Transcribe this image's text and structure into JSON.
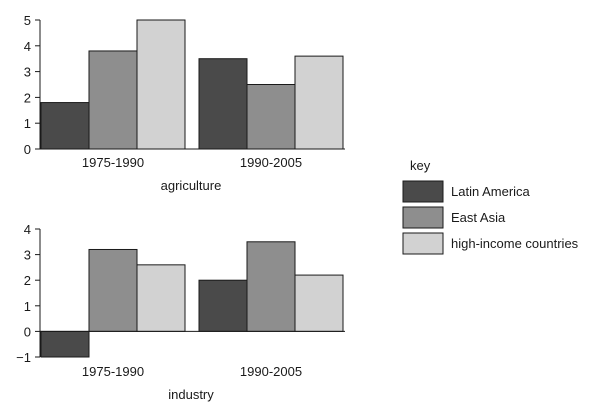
{
  "chart_data": [
    {
      "type": "bar",
      "title": "agriculture",
      "categories": [
        "1975-1990",
        "1990-2005"
      ],
      "series": [
        {
          "name": "Latin America",
          "values": [
            1.8,
            3.5
          ]
        },
        {
          "name": "East Asia",
          "values": [
            3.8,
            2.5
          ]
        },
        {
          "name": "high-income countries",
          "values": [
            5.0,
            3.6
          ]
        }
      ],
      "yticks": [
        "0",
        "1",
        "2",
        "3",
        "4",
        "5"
      ],
      "ylim": [
        0,
        5
      ],
      "grid": false
    },
    {
      "type": "bar",
      "title": "industry",
      "categories": [
        "1975-1990",
        "1990-2005"
      ],
      "series": [
        {
          "name": "Latin America",
          "values": [
            -1.0,
            2.0
          ]
        },
        {
          "name": "East Asia",
          "values": [
            3.2,
            3.5
          ]
        },
        {
          "name": "high-income countries",
          "values": [
            2.6,
            2.2
          ]
        }
      ],
      "yticks": [
        "−1",
        "0",
        "1",
        "2",
        "3",
        "4"
      ],
      "ylim": [
        -1,
        4
      ],
      "grid": false
    }
  ],
  "legend": {
    "title": "key",
    "placement": "right",
    "items": [
      "Latin America",
      "East Asia",
      "high-income countries"
    ]
  },
  "colors": {
    "Latin America": "#4a4a4a",
    "East Asia": "#8e8e8e",
    "high-income countries": "#d2d2d2",
    "outline": "#1a1a1a"
  }
}
